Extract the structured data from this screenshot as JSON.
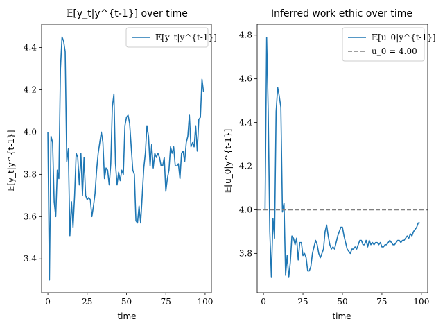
{
  "chart_data": [
    {
      "type": "line",
      "title": "𝔼[y_t|y^{t-1}] over time",
      "xlabel": "time",
      "ylabel": "𝔼[y_t|y^{t-1}]",
      "xlim": [
        -4,
        104
      ],
      "ylim": [
        3.24,
        4.51
      ],
      "xticks": [
        0,
        25,
        50,
        75,
        100
      ],
      "yticks": [
        3.4,
        3.6,
        3.8,
        4.0,
        4.2,
        4.4
      ],
      "xtick_labels": [
        "0",
        "25",
        "50",
        "75",
        "100"
      ],
      "ytick_labels": [
        "3.4",
        "3.6",
        "3.8",
        "4.0",
        "4.2",
        "4.4"
      ],
      "legend_position": "top-right",
      "series": [
        {
          "name": "𝔼[y_t|y^{t-1}]",
          "color": "#1f77b4",
          "x": [
            0,
            1,
            2,
            3,
            4,
            5,
            6,
            7,
            8,
            9,
            10,
            11,
            12,
            13,
            14,
            15,
            16,
            17,
            18,
            19,
            20,
            21,
            22,
            23,
            24,
            25,
            26,
            27,
            28,
            29,
            30,
            31,
            32,
            33,
            34,
            35,
            36,
            37,
            38,
            39,
            40,
            41,
            42,
            43,
            44,
            45,
            46,
            47,
            48,
            49,
            50,
            51,
            52,
            53,
            54,
            55,
            56,
            57,
            58,
            59,
            60,
            61,
            62,
            63,
            64,
            65,
            66,
            67,
            68,
            69,
            70,
            71,
            72,
            73,
            74,
            75,
            76,
            77,
            78,
            79,
            80,
            81,
            82,
            83,
            84,
            85,
            86,
            87,
            88,
            89,
            90,
            91,
            92,
            93,
            94,
            95,
            96,
            97,
            98,
            99
          ],
          "values": [
            4.0,
            3.3,
            3.98,
            3.95,
            3.67,
            3.6,
            3.82,
            3.78,
            4.3,
            4.45,
            4.43,
            4.38,
            3.86,
            3.92,
            3.51,
            3.67,
            3.55,
            3.7,
            3.9,
            3.88,
            3.75,
            3.9,
            3.7,
            3.88,
            3.7,
            3.68,
            3.69,
            3.68,
            3.6,
            3.65,
            3.71,
            3.82,
            3.9,
            3.95,
            4.0,
            3.95,
            3.78,
            3.83,
            3.82,
            3.75,
            3.85,
            4.12,
            4.18,
            3.85,
            3.75,
            3.81,
            3.77,
            3.82,
            3.8,
            4.03,
            4.07,
            4.08,
            4.04,
            3.93,
            3.82,
            3.8,
            3.58,
            3.57,
            3.65,
            3.57,
            3.7,
            3.83,
            3.9,
            4.03,
            3.98,
            3.84,
            3.94,
            3.83,
            3.9,
            3.88,
            3.9,
            3.88,
            3.84,
            3.84,
            3.88,
            3.72,
            3.78,
            3.82,
            3.93,
            3.9,
            3.93,
            3.84,
            3.84,
            3.85,
            3.78,
            3.9,
            3.91,
            3.86,
            3.95,
            3.98,
            4.08,
            3.93,
            3.95,
            3.93,
            4.03,
            3.91,
            4.06,
            4.07,
            4.25,
            4.19
          ]
        }
      ]
    },
    {
      "type": "line",
      "title": "Inferred work ethic over time",
      "xlabel": "time",
      "ylabel": "𝔼[u_0|y^{t-1}]",
      "xlim": [
        -4,
        104
      ],
      "ylim": [
        3.62,
        4.85
      ],
      "xticks": [
        0,
        25,
        50,
        75,
        100
      ],
      "yticks": [
        3.8,
        4.0,
        4.2,
        4.4,
        4.6,
        4.8
      ],
      "xtick_labels": [
        "0",
        "25",
        "50",
        "75",
        "100"
      ],
      "ytick_labels": [
        "3.8",
        "4.0",
        "4.2",
        "4.4",
        "4.6",
        "4.8"
      ],
      "legend_position": "top-right",
      "series": [
        {
          "name": "𝔼[u_0|y^{t-1}]",
          "color": "#1f77b4",
          "x": [
            1,
            2,
            3,
            4,
            5,
            6,
            7,
            8,
            9,
            10,
            11,
            12,
            13,
            14,
            15,
            16,
            17,
            18,
            19,
            20,
            21,
            22,
            23,
            24,
            25,
            26,
            27,
            28,
            29,
            30,
            31,
            32,
            33,
            34,
            35,
            36,
            37,
            38,
            39,
            40,
            41,
            42,
            43,
            44,
            45,
            46,
            47,
            48,
            49,
            50,
            51,
            52,
            53,
            54,
            55,
            56,
            57,
            58,
            59,
            60,
            61,
            62,
            63,
            64,
            65,
            66,
            67,
            68,
            69,
            70,
            71,
            72,
            73,
            74,
            75,
            76,
            77,
            78,
            79,
            80,
            81,
            82,
            83,
            84,
            85,
            86,
            87,
            88,
            89,
            90,
            91,
            92,
            93,
            94,
            95,
            96,
            97,
            98,
            99
          ],
          "values": [
            4.0,
            4.79,
            4.45,
            3.9,
            3.69,
            3.96,
            3.87,
            4.45,
            4.56,
            4.52,
            4.47,
            3.99,
            4.03,
            3.7,
            3.79,
            3.69,
            3.76,
            3.88,
            3.87,
            3.84,
            3.87,
            3.77,
            3.85,
            3.85,
            3.79,
            3.8,
            3.78,
            3.72,
            3.72,
            3.74,
            3.8,
            3.83,
            3.86,
            3.84,
            3.8,
            3.78,
            3.8,
            3.82,
            3.9,
            3.93,
            3.88,
            3.84,
            3.82,
            3.83,
            3.82,
            3.85,
            3.88,
            3.9,
            3.92,
            3.92,
            3.88,
            3.85,
            3.82,
            3.81,
            3.8,
            3.82,
            3.82,
            3.83,
            3.82,
            3.84,
            3.86,
            3.86,
            3.84,
            3.84,
            3.86,
            3.83,
            3.86,
            3.84,
            3.85,
            3.84,
            3.85,
            3.85,
            3.84,
            3.85,
            3.83,
            3.83,
            3.84,
            3.84,
            3.85,
            3.86,
            3.85,
            3.84,
            3.84,
            3.85,
            3.86,
            3.86,
            3.85,
            3.86,
            3.86,
            3.87,
            3.88,
            3.87,
            3.89,
            3.88,
            3.9,
            3.91,
            3.92,
            3.94,
            3.94
          ]
        },
        {
          "name": "u_0 = 4.00",
          "color": "#7f7f7f",
          "dashed": true,
          "hline": 4.0
        }
      ]
    }
  ]
}
